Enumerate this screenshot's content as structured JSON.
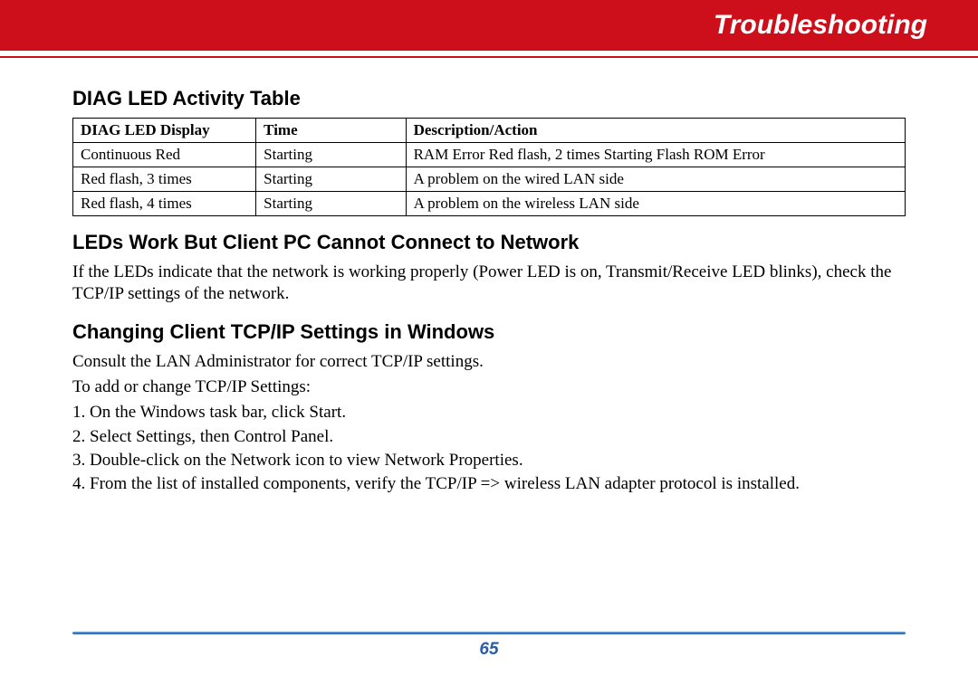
{
  "header": {
    "title": "Troubleshooting",
    "bg_color": "#cc0f1a",
    "text_color": "#ffffff"
  },
  "section1": {
    "heading": "DIAG LED Activity Table"
  },
  "table": {
    "columns": [
      "DIAG LED Display",
      "Time",
      "Description/Action"
    ],
    "rows": [
      [
        "Continuous Red",
        "Starting",
        "RAM Error Red flash, 2 times Starting Flash ROM Error"
      ],
      [
        "Red flash, 3 times",
        "Starting",
        "A problem on the wired LAN side"
      ],
      [
        "Red flash, 4 times",
        "Starting",
        "A problem on the wireless LAN side"
      ]
    ]
  },
  "section2": {
    "heading": "LEDs Work But Client PC Cannot Connect to Network",
    "body": "If the LEDs indicate that the network is working properly (Power LED is on, Transmit/Receive LED blinks), check the TCP/IP settings of the network."
  },
  "section3": {
    "heading": "Changing Client TCP/IP Settings in Windows",
    "body1": "Consult the LAN Administrator for correct TCP/IP settings.",
    "body2": "To add or change TCP/IP Settings:",
    "steps": [
      "On the Windows task bar, click Start.",
      "Select Settings, then Control Panel.",
      "Double-click on the Network icon to view Network Properties.",
      "From the list of installed components, verify the TCP/IP => wireless LAN adapter protocol is installed."
    ]
  },
  "footer": {
    "page_number": "65",
    "rule_color": "#2b5ca8"
  }
}
